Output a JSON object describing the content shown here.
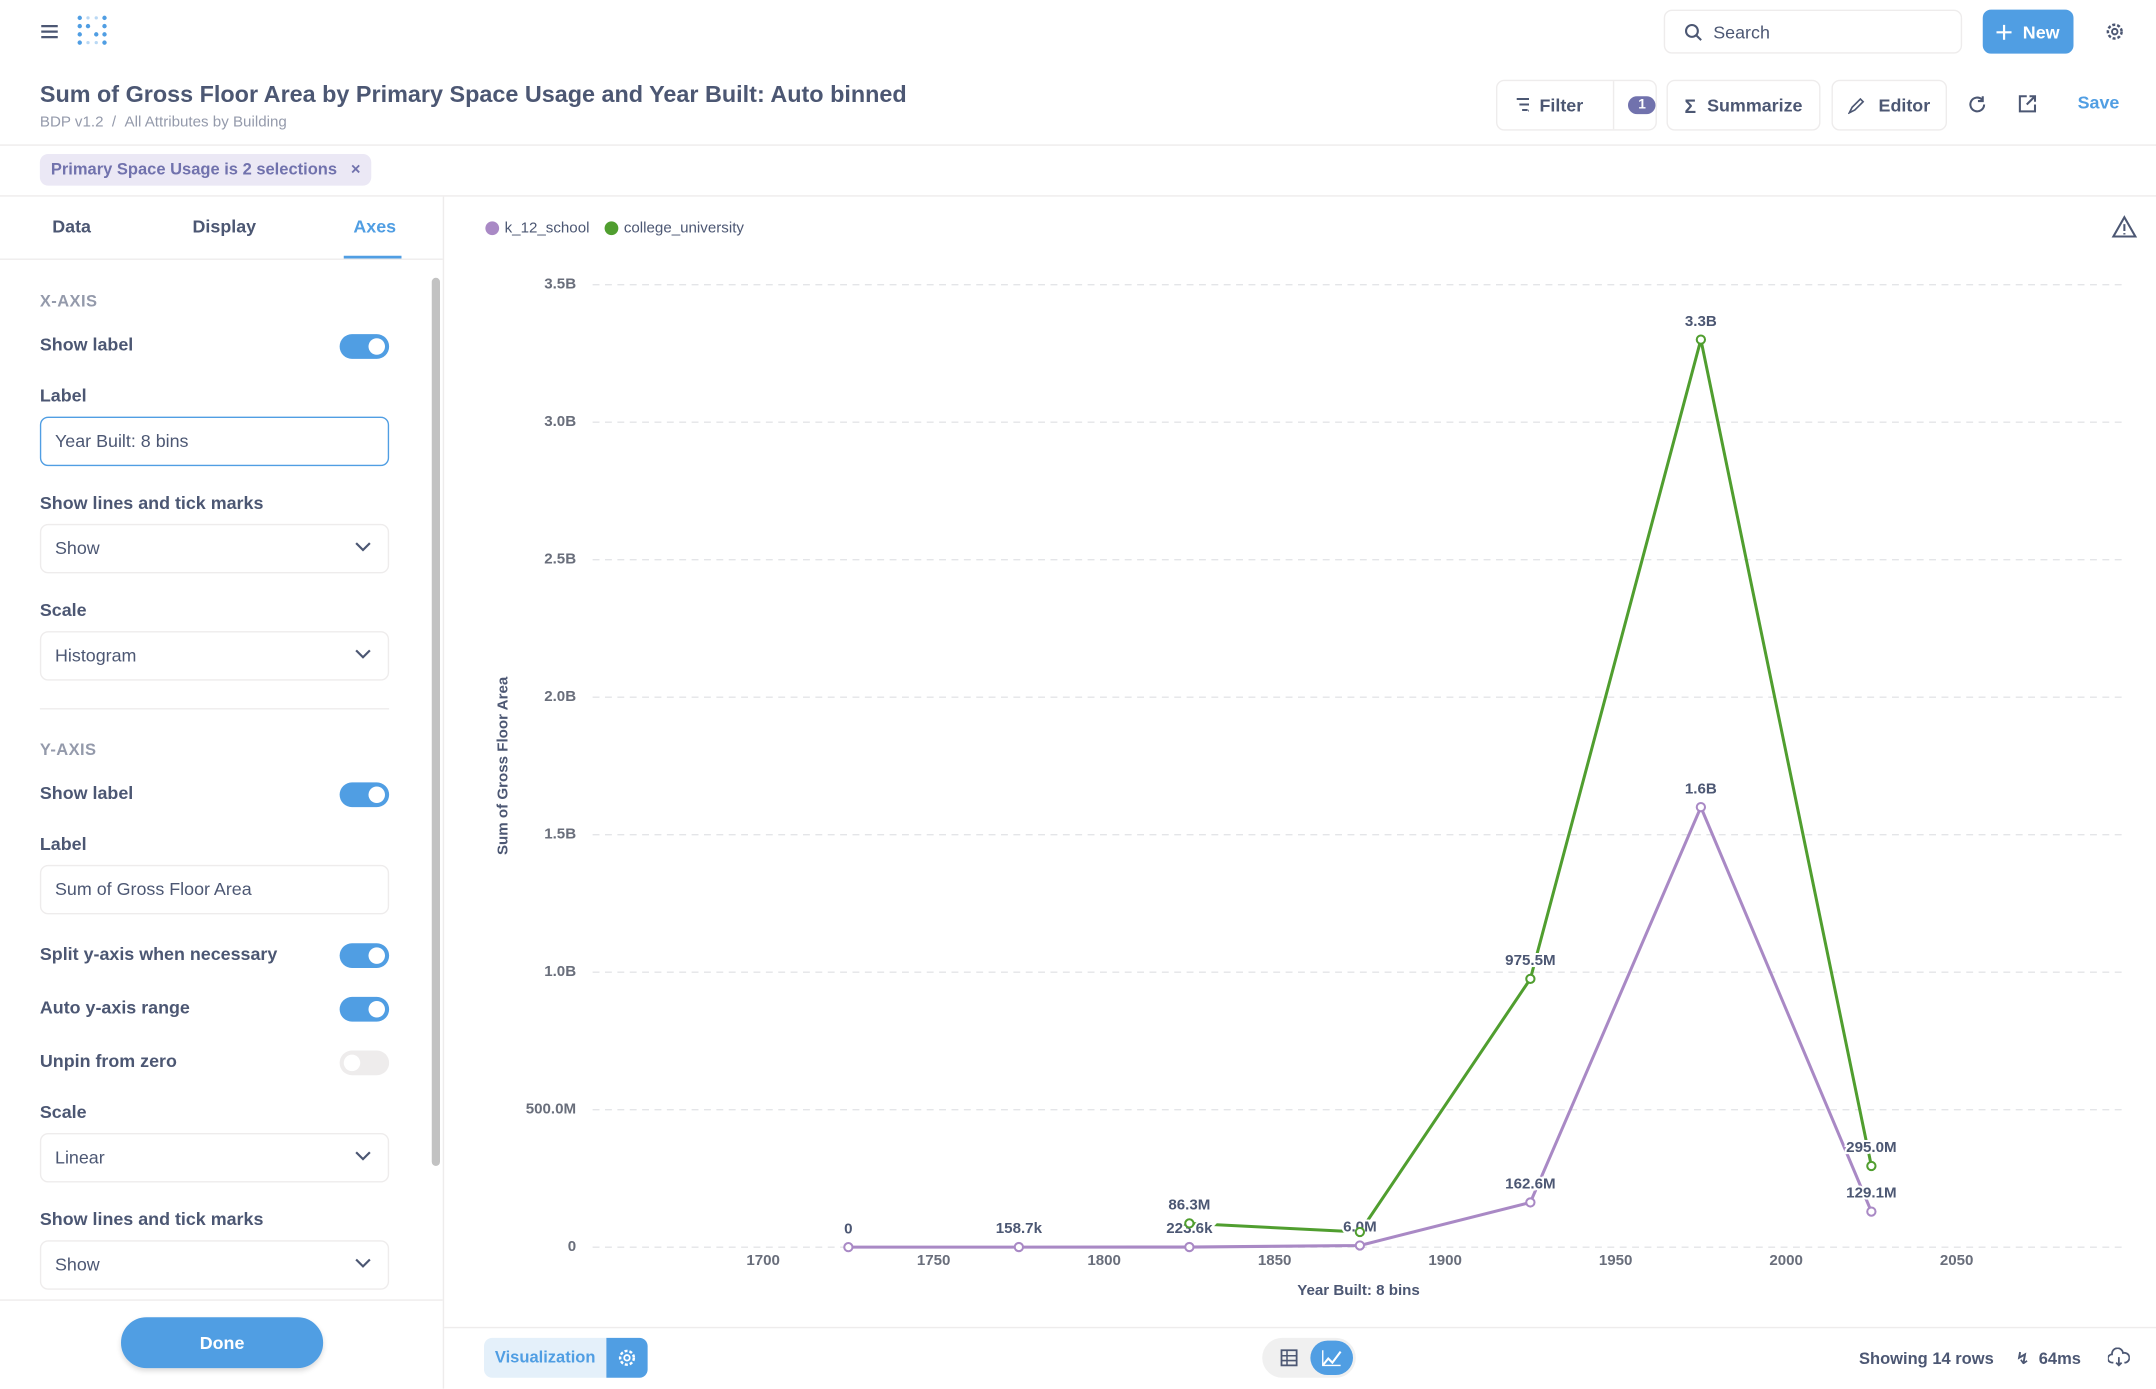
{
  "header": {
    "search": "Search",
    "new_button": "New",
    "title": "Sum of Gross Floor Area by Primary Space Usage and Year Built: Auto binned",
    "breadcrumb": [
      "BDP v1.2",
      "All Attributes by Building"
    ],
    "actions": {
      "filter": "Filter",
      "filter_count": "1",
      "summarize": "Summarize",
      "editor": "Editor",
      "save": "Save"
    }
  },
  "filter_pill": "Primary Space Usage is 2 selections",
  "sidebar": {
    "tabs": [
      "Data",
      "Display",
      "Axes"
    ],
    "active_tab": 2,
    "x_axis": {
      "heading": "X-AXIS",
      "show_label": "Show label",
      "show_label_on": true,
      "label_heading": "Label",
      "label_value": "Year Built: 8 bins",
      "lines_heading": "Show lines and tick marks",
      "lines_value": "Show",
      "scale_heading": "Scale",
      "scale_value": "Histogram"
    },
    "y_axis": {
      "heading": "Y-AXIS",
      "show_label": "Show label",
      "show_label_on": true,
      "label_heading": "Label",
      "label_value": "Sum of Gross Floor Area",
      "split": "Split y-axis when necessary",
      "split_on": true,
      "auto_range": "Auto y-axis range",
      "auto_range_on": true,
      "unpin": "Unpin from zero",
      "unpin_on": false,
      "scale_heading": "Scale",
      "scale_value": "Linear",
      "lines_heading": "Show lines and tick marks",
      "lines_value": "Show"
    },
    "done": "Done"
  },
  "chart_data": {
    "type": "line",
    "x_label": "Year Built: 8 bins",
    "y_label": "Sum of Gross Floor Area",
    "x": [
      1725,
      1775,
      1825,
      1875,
      1925,
      1975,
      2025
    ],
    "series": [
      {
        "name": "k_12_school",
        "color": "#a989c5",
        "values": [
          0,
          158700,
          223600,
          6000000,
          162600000,
          1600000000,
          129100000
        ],
        "value_labels": [
          "0",
          "158.7k",
          "223.6k",
          "6.0M",
          "162.6M",
          "1.6B",
          "129.1M"
        ]
      },
      {
        "name": "college_university",
        "color": "#509e2f",
        "values": [
          null,
          null,
          86300000,
          55000000,
          975500000,
          3300000000,
          295000000
        ],
        "value_labels": [
          null,
          null,
          "86.3M",
          null,
          "975.5M",
          "3.3B",
          "295.0M"
        ]
      }
    ],
    "xlim": [
      1650,
      2100
    ],
    "xticks": [
      1700,
      1750,
      1800,
      1850,
      1900,
      1950,
      2000,
      2050
    ],
    "ylim": [
      0,
      3500000000
    ],
    "yticks": [
      0,
      {
        "value": 500000000,
        "label": "500.0M"
      },
      {
        "value": 1000000000,
        "label": "1.0B"
      },
      {
        "value": 1500000000,
        "label": "1.5B"
      },
      {
        "value": 2000000000,
        "label": "2.0B"
      },
      {
        "value": 2500000000,
        "label": "2.5B"
      },
      {
        "value": 3000000000,
        "label": "3.0B"
      },
      {
        "value": 3500000000,
        "label": "3.5B"
      }
    ],
    "grid": true,
    "legend": "top-left"
  },
  "footer": {
    "visualization": "Visualization",
    "rows": "Showing 14 rows",
    "timing": "64ms"
  }
}
